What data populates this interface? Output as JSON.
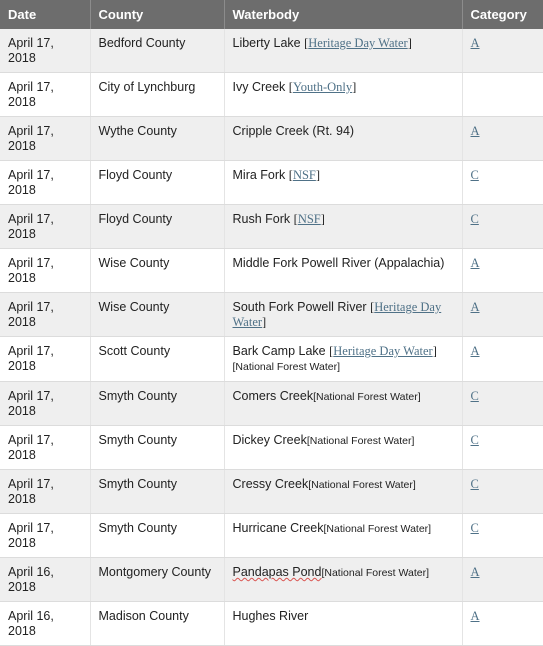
{
  "headers": {
    "date": "Date",
    "county": "County",
    "waterbody": "Waterbody",
    "category": "Category"
  },
  "rows": [
    {
      "date": "April 17, 2018",
      "county": "Bedford County",
      "water": "Liberty Lake",
      "note": "Heritage Day Water",
      "nfw": "",
      "cat": "A"
    },
    {
      "date": "April 17, 2018",
      "county": "City of Lynchburg",
      "water": "Ivy Creek",
      "note": "Youth-Only",
      "nfw": "",
      "cat": ""
    },
    {
      "date": "April 17, 2018",
      "county": "Wythe County",
      "water": "Cripple Creek (Rt. 94)",
      "note": "",
      "nfw": "",
      "cat": "A"
    },
    {
      "date": "April 17, 2018",
      "county": "Floyd County",
      "water": "Mira Fork",
      "note": "NSF",
      "nfw": "",
      "cat": "C"
    },
    {
      "date": "April 17, 2018",
      "county": "Floyd County",
      "water": "Rush Fork",
      "note": "NSF",
      "nfw": "",
      "cat": "C"
    },
    {
      "date": "April 17, 2018",
      "county": "Wise County",
      "water": "Middle Fork Powell River (Appalachia)",
      "note": "",
      "nfw": "",
      "cat": "A"
    },
    {
      "date": "April 17, 2018",
      "county": "Wise County",
      "water": "South Fork Powell River",
      "note": "Heritage Day Water",
      "nfw": "",
      "cat": "A"
    },
    {
      "date": "April 17, 2018",
      "county": "Scott County",
      "water": "Bark Camp Lake",
      "note": "Heritage Day Water",
      "nfw": "[National Forest Water]",
      "cat": "A"
    },
    {
      "date": "April 17, 2018",
      "county": "Smyth County",
      "water": "Comers Creek",
      "note": "",
      "nfw": "[National Forest Water]",
      "cat": "C"
    },
    {
      "date": "April 17, 2018",
      "county": "Smyth County",
      "water": "Dickey Creek",
      "note": "",
      "nfw": "[National Forest Water]",
      "cat": "C"
    },
    {
      "date": "April 17, 2018",
      "county": "Smyth County",
      "water": "Cressy Creek",
      "note": "",
      "nfw": "[National Forest Water]",
      "cat": "C"
    },
    {
      "date": "April 17, 2018",
      "county": "Smyth County",
      "water": "Hurricane Creek",
      "note": "",
      "nfw": "[National Forest Water]",
      "cat": "C"
    },
    {
      "date": "April 16, 2018",
      "county": "Montgomery County",
      "water": "Pandapas Pond",
      "note": "",
      "nfw": "[National Forest Water]",
      "cat": "A"
    },
    {
      "date": "April 16, 2018",
      "county": "Madison County",
      "water": "Hughes River",
      "note": "",
      "nfw": "",
      "cat": "A"
    }
  ]
}
